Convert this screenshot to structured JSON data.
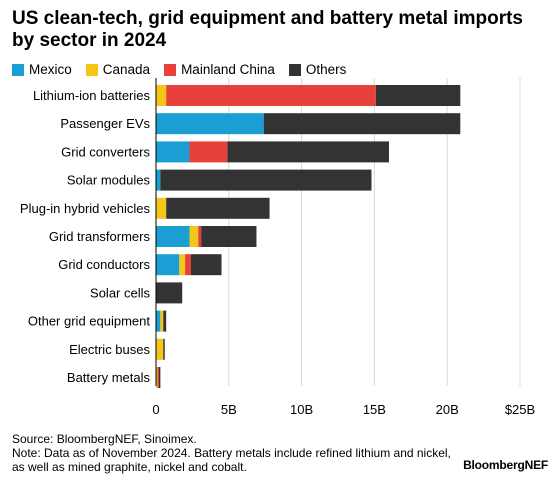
{
  "chart_data": {
    "type": "bar",
    "orientation": "horizontal",
    "stacked": true,
    "title": "US clean-tech, grid equipment and battery metal imports by sector in 2024",
    "categories": [
      "Lithium-ion batteries",
      "Passenger EVs",
      "Grid converters",
      "Solar modules",
      "Plug-in hybrid vehicles",
      "Grid transformers",
      "Grid conductors",
      "Solar cells",
      "Other grid equipment",
      "Electric buses",
      "Battery metals"
    ],
    "series": [
      {
        "name": "Mexico",
        "color": "#1a9ed4",
        "values": [
          0,
          7.4,
          2.3,
          0.3,
          0,
          2.3,
          1.6,
          0,
          0.3,
          0,
          0
        ]
      },
      {
        "name": "Canada",
        "color": "#f5c518",
        "values": [
          0.7,
          0,
          0,
          0,
          0.7,
          0.6,
          0.4,
          0,
          0.2,
          0.5,
          0.1
        ]
      },
      {
        "name": "Mainland China",
        "color": "#e8403a",
        "values": [
          14.4,
          0,
          2.6,
          0,
          0,
          0.2,
          0.4,
          0,
          0,
          0,
          0.1
        ]
      },
      {
        "name": "Others",
        "color": "#333333",
        "values": [
          5.8,
          13.5,
          11.1,
          14.5,
          7.1,
          3.8,
          2.1,
          1.8,
          0.2,
          0.1,
          0.1
        ]
      }
    ],
    "x_ticks": [
      "0",
      "5B",
      "10B",
      "15B",
      "20B",
      "$25B"
    ],
    "xlim": [
      0,
      25
    ],
    "legend_position": "top-left",
    "grid": "vertical"
  },
  "source": "Source: BloombergNEF, Sinoimex.",
  "note": "Note: Data as of November 2024. Battery metals include refined lithium and nickel, as well as mined graphite, nickel and cobalt.",
  "brand": "BloombergNEF"
}
